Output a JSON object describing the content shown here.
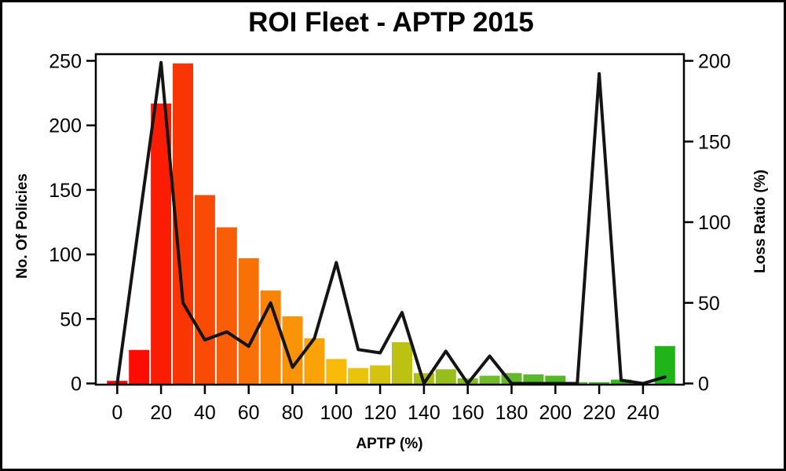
{
  "window": {
    "background": "#FFFFFF",
    "outer_border_color": "#000000"
  },
  "chart_data": {
    "type": "bar",
    "subtype": "histogram-with-line-overlay",
    "title": "ROI Fleet - APTP 2015",
    "xlabel": "APTP (%)",
    "ylabel_left": "No. Of Policies",
    "ylabel_right": "Loss Ratio (%)",
    "grid": false,
    "legend": "none",
    "plot_background": "#FFFFFF",
    "frame_color": "#000000",
    "xlim": [
      -10,
      258
    ],
    "ylim_left": [
      0,
      250
    ],
    "ylim_right": [
      0,
      200
    ],
    "x_tick_labels": [
      0,
      20,
      40,
      60,
      80,
      100,
      120,
      140,
      160,
      180,
      200,
      220,
      240
    ],
    "y_left_ticks": [
      0,
      50,
      100,
      150,
      200,
      250
    ],
    "y_right_ticks": [
      0,
      50,
      100,
      150,
      200
    ],
    "categories": [
      0,
      10,
      20,
      30,
      40,
      50,
      60,
      70,
      80,
      90,
      100,
      110,
      120,
      130,
      140,
      150,
      160,
      170,
      180,
      190,
      200,
      210,
      220,
      230,
      240,
      250
    ],
    "series": [
      {
        "name": "No. Of Policies",
        "type": "bar",
        "axis": "left",
        "values": [
          2,
          26,
          217,
          248,
          146,
          121,
          97,
          72,
          52,
          35,
          19,
          12,
          14,
          32,
          8,
          11,
          4,
          6,
          8,
          7,
          6,
          1,
          1,
          3,
          0,
          29
        ],
        "bar_colors": [
          "#FF0000",
          "#FF0C02",
          "#FB1D03",
          "#F93504",
          "#F94B05",
          "#F95E06",
          "#F97106",
          "#F98207",
          "#F99308",
          "#F9A309",
          "#F9BA0A",
          "#E8C40C",
          "#D5C30F",
          "#BDC112",
          "#ACBF16",
          "#98BE1D",
          "#84BD25",
          "#70BC2B",
          "#62BA2B",
          "#59B929",
          "#51B827",
          "#48B825",
          "#40B722",
          "#37B61F",
          "#2EB51D",
          "#1FB417"
        ]
      },
      {
        "name": "Loss Ratio (%)",
        "type": "line",
        "axis": "right",
        "color": "#141414",
        "stroke_width": 4,
        "values": [
          0,
          100,
          199,
          50,
          27,
          32,
          23,
          50,
          10,
          28,
          75,
          21,
          19,
          44,
          0,
          20,
          0,
          17,
          0,
          0,
          0,
          0,
          192,
          2,
          0,
          4
        ]
      }
    ]
  }
}
